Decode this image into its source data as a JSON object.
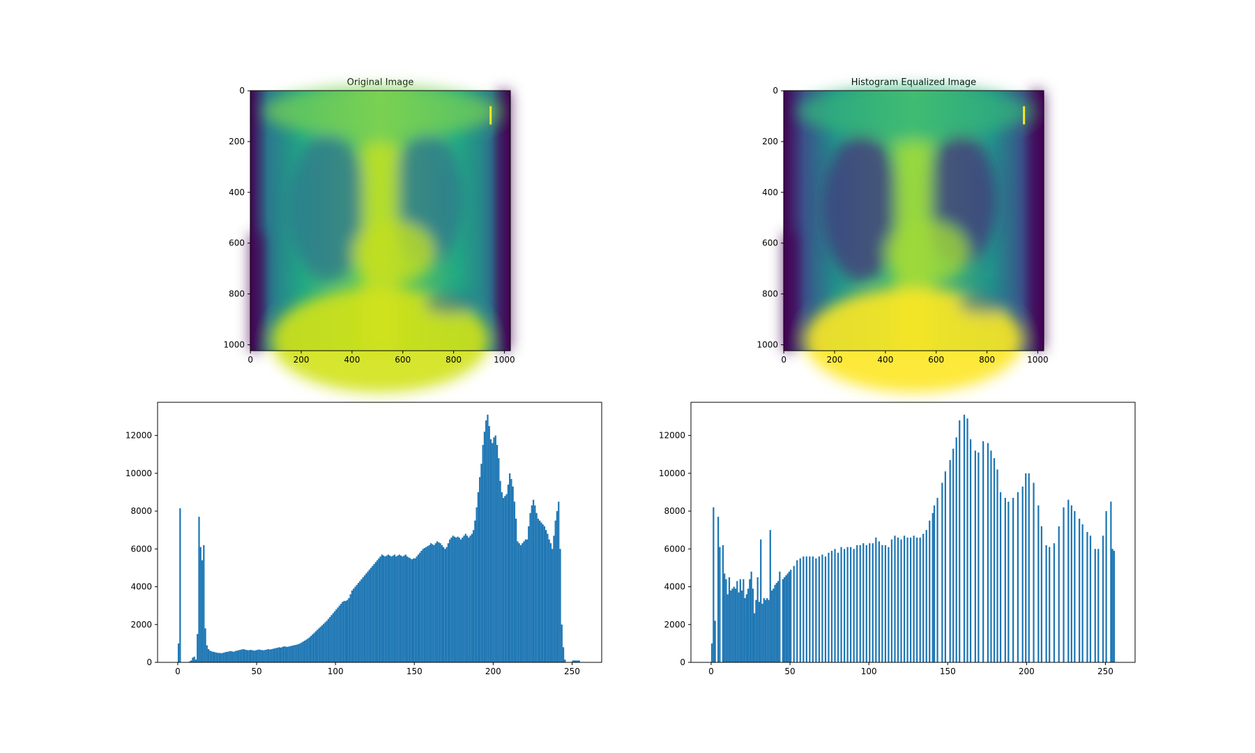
{
  "chart_data": [
    {
      "type": "image",
      "title": "Original Image",
      "xlim": [
        -0.5,
        1023.5
      ],
      "ylim": [
        1023.5,
        -0.5
      ],
      "xticks": [
        0,
        200,
        400,
        600,
        800,
        1000
      ],
      "yticks": [
        0,
        200,
        400,
        600,
        800,
        1000
      ]
    },
    {
      "type": "image",
      "title": "Histogram Equalized Image",
      "xlim": [
        -0.5,
        1023.5
      ],
      "ylim": [
        1023.5,
        -0.5
      ],
      "xticks": [
        0,
        200,
        400,
        600,
        800,
        1000
      ],
      "yticks": [
        0,
        200,
        400,
        600,
        800,
        1000
      ]
    },
    {
      "type": "histogram",
      "color": "#1f77b4",
      "xlim": [
        -12.8,
        268.8
      ],
      "ylim": [
        0,
        13755
      ],
      "xticks": [
        0,
        50,
        100,
        150,
        200,
        250
      ],
      "yticks": [
        0,
        2000,
        4000,
        6000,
        8000,
        10000,
        12000
      ],
      "bins": [
        0,
        1,
        2,
        3,
        4,
        5,
        6,
        7,
        8,
        9,
        10,
        11,
        12,
        13,
        14,
        15,
        16,
        17,
        18,
        19,
        20,
        21,
        22,
        23,
        24,
        25,
        26,
        27,
        28,
        29,
        30,
        31,
        32,
        33,
        34,
        35,
        36,
        37,
        38,
        39,
        40,
        41,
        42,
        43,
        44,
        45,
        46,
        47,
        48,
        49,
        50,
        51,
        52,
        53,
        54,
        55,
        56,
        57,
        58,
        59,
        60,
        61,
        62,
        63,
        64,
        65,
        66,
        67,
        68,
        69,
        70,
        71,
        72,
        73,
        74,
        75,
        76,
        77,
        78,
        79,
        80,
        81,
        82,
        83,
        84,
        85,
        86,
        87,
        88,
        89,
        90,
        91,
        92,
        93,
        94,
        95,
        96,
        97,
        98,
        99,
        100,
        101,
        102,
        103,
        104,
        105,
        106,
        107,
        108,
        109,
        110,
        111,
        112,
        113,
        114,
        115,
        116,
        117,
        118,
        119,
        120,
        121,
        122,
        123,
        124,
        125,
        126,
        127,
        128,
        129,
        130,
        131,
        132,
        133,
        134,
        135,
        136,
        137,
        138,
        139,
        140,
        141,
        142,
        143,
        144,
        145,
        146,
        147,
        148,
        149,
        150,
        151,
        152,
        153,
        154,
        155,
        156,
        157,
        158,
        159,
        160,
        161,
        162,
        163,
        164,
        165,
        166,
        167,
        168,
        169,
        170,
        171,
        172,
        173,
        174,
        175,
        176,
        177,
        178,
        179,
        180,
        181,
        182,
        183,
        184,
        185,
        186,
        187,
        188,
        189,
        190,
        191,
        192,
        193,
        194,
        195,
        196,
        197,
        198,
        199,
        200,
        201,
        202,
        203,
        204,
        205,
        206,
        207,
        208,
        209,
        210,
        211,
        212,
        213,
        214,
        215,
        216,
        217,
        218,
        219,
        220,
        221,
        222,
        223,
        224,
        225,
        226,
        227,
        228,
        229,
        230,
        231,
        232,
        233,
        234,
        235,
        236,
        237,
        238,
        239,
        240,
        241,
        242,
        243,
        244,
        245,
        246,
        247,
        248,
        249,
        250,
        251,
        252,
        253,
        254,
        255,
        256
      ],
      "counts": [
        1000,
        8150,
        0,
        0,
        0,
        0,
        0,
        50,
        100,
        250,
        300,
        150,
        1500,
        7700,
        6100,
        5400,
        6200,
        1800,
        900,
        700,
        620,
        580,
        560,
        540,
        520,
        500,
        500,
        480,
        500,
        520,
        550,
        560,
        580,
        600,
        580,
        560,
        600,
        620,
        640,
        660,
        680,
        700,
        680,
        660,
        640,
        650,
        660,
        640,
        620,
        640,
        660,
        680,
        660,
        650,
        640,
        660,
        680,
        700,
        680,
        700,
        720,
        740,
        760,
        780,
        800,
        780,
        820,
        850,
        830,
        820,
        840,
        860,
        880,
        900,
        920,
        940,
        960,
        1000,
        1050,
        1100,
        1150,
        1200,
        1260,
        1320,
        1400,
        1480,
        1560,
        1640,
        1720,
        1800,
        1880,
        1960,
        2040,
        2120,
        2200,
        2300,
        2400,
        2500,
        2600,
        2700,
        2800,
        2900,
        3000,
        3100,
        3200,
        3250,
        3250,
        3300,
        3400,
        3600,
        3800,
        3900,
        4000,
        4100,
        4200,
        4300,
        4400,
        4500,
        4600,
        4700,
        4800,
        4900,
        5000,
        5100,
        5200,
        5300,
        5400,
        5500,
        5600,
        5700,
        5650,
        5600,
        5650,
        5700,
        5650,
        5600,
        5650,
        5700,
        5600,
        5650,
        5700,
        5650,
        5600,
        5650,
        5700,
        5600,
        5550,
        5500,
        5450,
        5500,
        5500,
        5600,
        5700,
        5800,
        5900,
        6000,
        6050,
        6100,
        6150,
        6200,
        6300,
        6250,
        6200,
        6300,
        6400,
        6350,
        6300,
        6200,
        6100,
        6000,
        6100,
        6300,
        6500,
        6600,
        6700,
        6650,
        6600,
        6650,
        6600,
        6500,
        6600,
        6700,
        6800,
        6700,
        6600,
        6700,
        6800,
        7000,
        7500,
        8200,
        9000,
        9800,
        10500,
        11500,
        12200,
        12800,
        13100,
        12500,
        11800,
        11600,
        11900,
        12000,
        11500,
        10800,
        9600,
        9000,
        8700,
        8800,
        8900,
        9400,
        10000,
        9700,
        9300,
        8500,
        7600,
        6400,
        6300,
        6200,
        6300,
        6400,
        6500,
        6500,
        7200,
        7900,
        8300,
        8600,
        8300,
        7900,
        7600,
        7500,
        7400,
        7300,
        7200,
        7000,
        6800,
        6500,
        6300,
        6000,
        6700,
        7500,
        8000,
        8500,
        6000,
        2000,
        800,
        150,
        0,
        0,
        0,
        0,
        100,
        100,
        100,
        100,
        100,
        0
      ]
    },
    {
      "type": "histogram",
      "color": "#1f77b4",
      "xlim": [
        -12.8,
        268.8
      ],
      "ylim": [
        0,
        13755
      ],
      "xticks": [
        0,
        50,
        100,
        150,
        200,
        250
      ],
      "yticks": [
        0,
        2000,
        4000,
        6000,
        8000,
        10000,
        12000
      ],
      "bins": [
        0,
        1,
        2,
        3,
        4,
        5,
        6,
        7,
        8,
        9,
        10,
        11,
        12,
        13,
        14,
        15,
        16,
        17,
        18,
        19,
        20,
        21,
        22,
        23,
        24,
        25,
        26,
        27,
        28,
        29,
        30,
        31,
        32,
        33,
        34,
        35,
        36,
        37,
        38,
        39,
        40,
        41,
        42,
        43,
        44,
        45,
        46,
        47,
        48,
        49,
        50,
        51,
        52,
        53,
        54,
        55,
        56,
        57,
        58,
        59,
        60,
        61,
        62,
        63,
        64,
        65,
        66,
        67,
        68,
        69,
        70,
        71,
        72,
        73,
        74,
        75,
        76,
        77,
        78,
        79,
        80,
        81,
        82,
        83,
        84,
        85,
        86,
        87,
        88,
        89,
        90,
        91,
        92,
        93,
        94,
        95,
        96,
        97,
        98,
        99,
        100,
        101,
        102,
        103,
        104,
        105,
        106,
        107,
        108,
        109,
        110,
        111,
        112,
        113,
        114,
        115,
        116,
        117,
        118,
        119,
        120,
        121,
        122,
        123,
        124,
        125,
        126,
        127,
        128,
        129,
        130,
        131,
        132,
        133,
        134,
        135,
        136,
        137,
        138,
        139,
        140,
        141,
        142,
        143,
        144,
        145,
        146,
        147,
        148,
        149,
        150,
        151,
        152,
        153,
        154,
        155,
        156,
        157,
        158,
        159,
        160,
        161,
        162,
        163,
        164,
        165,
        166,
        167,
        168,
        169,
        170,
        171,
        172,
        173,
        174,
        175,
        176,
        177,
        178,
        179,
        180,
        181,
        182,
        183,
        184,
        185,
        186,
        187,
        188,
        189,
        190,
        191,
        192,
        193,
        194,
        195,
        196,
        197,
        198,
        199,
        200,
        201,
        202,
        203,
        204,
        205,
        206,
        207,
        208,
        209,
        210,
        211,
        212,
        213,
        214,
        215,
        216,
        217,
        218,
        219,
        220,
        221,
        222,
        223,
        224,
        225,
        226,
        227,
        228,
        229,
        230,
        231,
        232,
        233,
        234,
        235,
        236,
        237,
        238,
        239,
        240,
        241,
        242,
        243,
        244,
        245,
        246,
        247,
        248,
        249,
        250,
        251,
        252,
        253,
        254,
        255,
        256
      ],
      "counts": [
        1000,
        8200,
        2200,
        0,
        7700,
        6100,
        0,
        6200,
        4700,
        4400,
        3600,
        4500,
        3800,
        3900,
        4000,
        3900,
        4300,
        3700,
        4400,
        3800,
        4400,
        3400,
        3600,
        3900,
        4400,
        4800,
        3900,
        2600,
        3300,
        4500,
        3200,
        6500,
        3100,
        3400,
        3300,
        3400,
        3300,
        7000,
        3800,
        3900,
        4100,
        4200,
        4300,
        4800,
        0,
        4400,
        4500,
        4600,
        4700,
        4800,
        4900,
        0,
        5100,
        0,
        5400,
        0,
        5500,
        0,
        5600,
        0,
        5600,
        0,
        5600,
        0,
        5600,
        0,
        5500,
        0,
        5600,
        0,
        5700,
        0,
        5600,
        0,
        5800,
        0,
        5900,
        0,
        6000,
        0,
        5800,
        0,
        6100,
        0,
        6000,
        0,
        6100,
        0,
        6100,
        0,
        6000,
        0,
        6200,
        0,
        6200,
        0,
        6300,
        0,
        6200,
        0,
        6300,
        0,
        6300,
        0,
        6600,
        0,
        6400,
        0,
        6200,
        0,
        6200,
        0,
        6100,
        0,
        6500,
        0,
        6700,
        0,
        6600,
        0,
        6500,
        0,
        6700,
        0,
        6600,
        0,
        6600,
        0,
        6700,
        0,
        6600,
        0,
        6600,
        0,
        6800,
        0,
        7000,
        0,
        7500,
        0,
        7900,
        8300,
        0,
        8700,
        0,
        0,
        9500,
        0,
        10100,
        0,
        0,
        10700,
        0,
        11300,
        0,
        11900,
        0,
        12800,
        0,
        0,
        13100,
        0,
        12900,
        0,
        11800,
        0,
        0,
        11200,
        0,
        11100,
        0,
        0,
        11700,
        0,
        0,
        11600,
        0,
        11200,
        0,
        10800,
        0,
        10200,
        0,
        9000,
        0,
        0,
        8700,
        0,
        8500,
        0,
        0,
        8700,
        0,
        0,
        9000,
        0,
        0,
        9300,
        0,
        10000,
        0,
        10000,
        0,
        0,
        9500,
        0,
        0,
        8300,
        0,
        7200,
        0,
        0,
        6200,
        0,
        6100,
        0,
        0,
        6300,
        0,
        0,
        7200,
        0,
        0,
        8200,
        0,
        0,
        8600,
        0,
        8300,
        0,
        8000,
        0,
        0,
        7600,
        0,
        7300,
        0,
        0,
        6900,
        0,
        6700,
        0,
        0,
        6000,
        0,
        6000,
        0,
        0,
        6700,
        0,
        8000,
        0,
        0,
        8500,
        6000,
        5900
      ]
    }
  ]
}
